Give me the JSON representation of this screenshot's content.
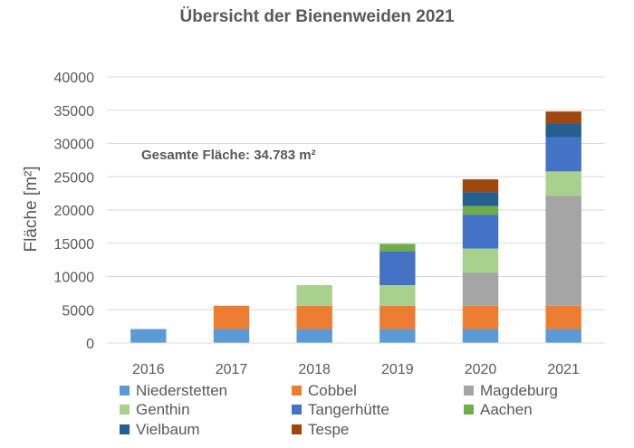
{
  "chart_data": {
    "type": "bar",
    "stacked": true,
    "title": "Übersicht der Bienenweiden 2021",
    "ylabel": "Fläche [m²]",
    "xlabel": "",
    "ylim": [
      0,
      40000
    ],
    "yticks": [
      0,
      5000,
      10000,
      15000,
      20000,
      25000,
      30000,
      35000,
      40000
    ],
    "grid": true,
    "legend_position": "bottom",
    "annotation": "Gesamte Fläche: 34.783 m²",
    "categories": [
      "2016",
      "2017",
      "2018",
      "2019",
      "2020",
      "2021"
    ],
    "series": [
      {
        "name": "Niederstetten",
        "color": "#5b9bd5",
        "values": [
          2100,
          2100,
          2100,
          2100,
          2100,
          2100
        ]
      },
      {
        "name": "Cobbel",
        "color": "#ed7d31",
        "values": [
          0,
          3500,
          3500,
          3500,
          3500,
          3500
        ]
      },
      {
        "name": "Magdeburg",
        "color": "#a5a5a5",
        "values": [
          0,
          0,
          0,
          0,
          5000,
          16500
        ]
      },
      {
        "name": "Genthin",
        "color": "#a9d18e",
        "values": [
          0,
          0,
          3100,
          3100,
          3600,
          3700
        ]
      },
      {
        "name": "Tangerhütte",
        "color": "#4472c4",
        "values": [
          0,
          0,
          0,
          5100,
          5100,
          5100
        ]
      },
      {
        "name": "Aachen",
        "color": "#70ad47",
        "values": [
          0,
          0,
          0,
          1100,
          1300,
          0
        ]
      },
      {
        "name": "Vielbaum",
        "color": "#255e91",
        "values": [
          0,
          0,
          0,
          0,
          2100,
          2100
        ]
      },
      {
        "name": "Tespe",
        "color": "#9e480e",
        "values": [
          0,
          0,
          0,
          0,
          1900,
          1800
        ]
      }
    ]
  }
}
